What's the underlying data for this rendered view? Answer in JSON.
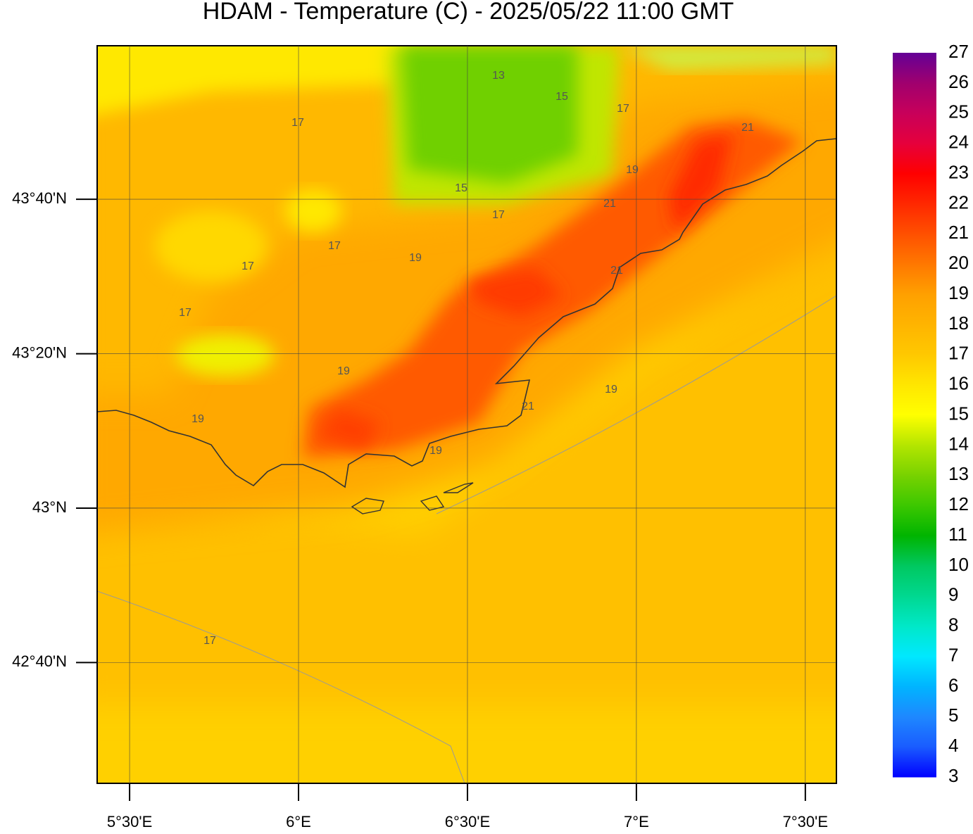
{
  "map": {
    "title": "HDAM - Temperature (C)  -  2025/05/22  11:00 GMT",
    "xlim": [
      5.404,
      7.592
    ],
    "ylim": [
      42.406,
      43.998
    ],
    "xticks": [
      {
        "value": 5.5,
        "label": "5°30'E"
      },
      {
        "value": 6,
        "label": "6°E"
      },
      {
        "value": 6.5,
        "label": "6°30'E"
      },
      {
        "value": 7,
        "label": "7°E"
      },
      {
        "value": 7.5,
        "label": "7°30'E"
      }
    ],
    "yticks": [
      {
        "value": 43.6667,
        "label": "43°40'N"
      },
      {
        "value": 43.3333,
        "label": "43°20'N"
      },
      {
        "value": 43,
        "label": "43°N"
      },
      {
        "value": 42.6667,
        "label": "42°40'N"
      }
    ],
    "grid": true,
    "contour_labels": [
      17,
      13,
      15,
      17,
      21,
      19,
      15,
      21,
      17,
      17,
      19,
      17,
      21,
      17,
      19,
      19,
      21,
      19,
      19,
      17
    ],
    "colorbar": {
      "ticks": [
        3,
        4,
        5,
        6,
        7,
        8,
        9,
        10,
        11,
        12,
        13,
        14,
        15,
        16,
        17,
        18,
        19,
        20,
        21,
        22,
        23,
        24,
        25,
        26,
        27
      ],
      "colors": [
        "#0000ff",
        "#1a5cff",
        "#1e88ff",
        "#00b4ff",
        "#00e8ff",
        "#00e8c8",
        "#00d890",
        "#00c860",
        "#00b400",
        "#3cc800",
        "#78d200",
        "#b4e600",
        "#ffff00",
        "#ffe600",
        "#ffc800",
        "#ffb400",
        "#ffa000",
        "#ff7800",
        "#ff5000",
        "#ff2800",
        "#ff0000",
        "#e6003c",
        "#c8005a",
        "#a0006e",
        "#640096"
      ]
    }
  }
}
